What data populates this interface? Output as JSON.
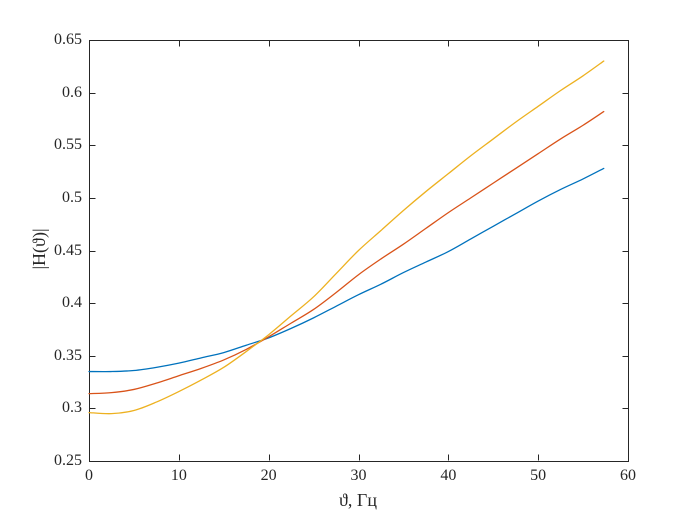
{
  "figure": {
    "background_color": "#ffffff",
    "axis_color": "#262626",
    "tick_label_color": "#262626"
  },
  "chart_data": {
    "type": "line",
    "title": "",
    "xlabel": "ϑ, Гц",
    "ylabel": "|H(ϑ)|",
    "xlim": [
      0,
      60
    ],
    "ylim": [
      0.25,
      0.65
    ],
    "xticks": [
      0,
      10,
      20,
      30,
      40,
      50,
      60
    ],
    "xtick_labels": [
      "0",
      "10",
      "20",
      "30",
      "40",
      "50",
      "60"
    ],
    "yticks": [
      0.25,
      0.3,
      0.35,
      0.4,
      0.45,
      0.5,
      0.55,
      0.6,
      0.65
    ],
    "ytick_labels": [
      "0.25",
      "0.3",
      "0.35",
      "0.4",
      "0.45",
      "0.5",
      "0.55",
      "0.6",
      "0.65"
    ],
    "grid": false,
    "legend": null,
    "box": true,
    "tick_direction": "in",
    "x": [
      0,
      2.5,
      5,
      7.5,
      10,
      12.5,
      15,
      17.5,
      20,
      22.5,
      25,
      27.5,
      30,
      32.5,
      35,
      37.5,
      40,
      42.5,
      45,
      47.5,
      50,
      52.5,
      55,
      57.3
    ],
    "series": [
      {
        "name": "curve-blue",
        "color": "#0072BD",
        "values": [
          0.335,
          0.335,
          0.336,
          0.339,
          0.343,
          0.348,
          0.353,
          0.36,
          0.367,
          0.376,
          0.386,
          0.397,
          0.408,
          0.418,
          0.429,
          0.439,
          0.449,
          0.461,
          0.473,
          0.485,
          0.497,
          0.508,
          0.518,
          0.528
        ]
      },
      {
        "name": "curve-red",
        "color": "#D95319",
        "values": [
          0.314,
          0.315,
          0.318,
          0.324,
          0.331,
          0.338,
          0.346,
          0.356,
          0.368,
          0.381,
          0.394,
          0.41,
          0.427,
          0.442,
          0.456,
          0.471,
          0.486,
          0.5,
          0.514,
          0.528,
          0.542,
          0.556,
          0.569,
          0.582
        ]
      },
      {
        "name": "curve-yellow",
        "color": "#EDB120",
        "values": [
          0.296,
          0.295,
          0.298,
          0.306,
          0.316,
          0.327,
          0.339,
          0.354,
          0.37,
          0.388,
          0.406,
          0.428,
          0.45,
          0.469,
          0.488,
          0.506,
          0.523,
          0.54,
          0.556,
          0.572,
          0.587,
          0.602,
          0.616,
          0.63
        ]
      }
    ]
  }
}
